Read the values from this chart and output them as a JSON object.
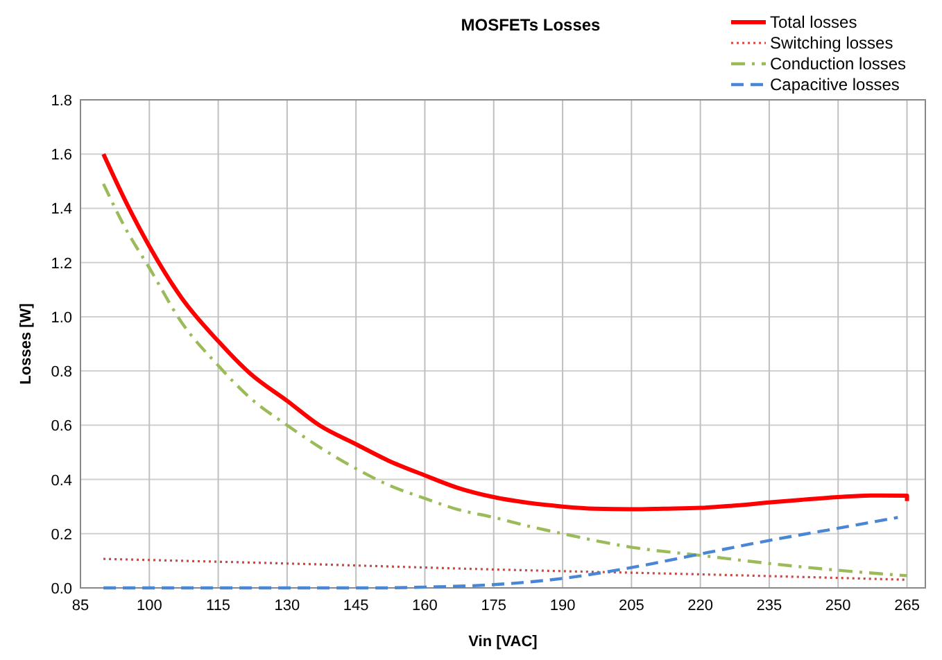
{
  "chart_data": {
    "type": "line",
    "title": "MOSFETs Losses",
    "xlabel": "Vin [VAC]",
    "ylabel": "Losses [W]",
    "xlim": [
      85,
      269
    ],
    "xticks": [
      85,
      100,
      115,
      130,
      145,
      160,
      175,
      190,
      205,
      220,
      235,
      250,
      265
    ],
    "ylim": [
      0,
      1.8
    ],
    "yticks": [
      {
        "value": 0,
        "label": "0.0"
      },
      {
        "value": 0.2,
        "label": "0.2"
      },
      {
        "value": 0.4,
        "label": "0.4"
      },
      {
        "value": 0.6,
        "label": "0.6"
      },
      {
        "value": 0.8,
        "label": "0.8"
      },
      {
        "value": 1,
        "label": "1.0"
      },
      {
        "value": 1.2,
        "label": "1.2"
      },
      {
        "value": 1.4,
        "label": "1.4"
      },
      {
        "value": 1.6,
        "label": "1.6"
      },
      {
        "value": 1.8,
        "label": "1.8"
      }
    ],
    "grid": true,
    "legend": "top right",
    "marker": "none",
    "series": [
      {
        "name": "Total losses",
        "color": "#ff0000",
        "line_style": "solid",
        "x": [
          90,
          95,
          100,
          107,
          115,
          122,
          130,
          137,
          145,
          152,
          160,
          167,
          175,
          182,
          190,
          197,
          205,
          212,
          220,
          227,
          235,
          242,
          250,
          257,
          265,
          265
        ],
        "values": [
          1.6,
          1.42,
          1.26,
          1.07,
          0.91,
          0.79,
          0.69,
          0.6,
          0.53,
          0.47,
          0.415,
          0.37,
          0.335,
          0.315,
          0.3,
          0.292,
          0.29,
          0.292,
          0.295,
          0.303,
          0.315,
          0.325,
          0.335,
          0.341,
          0.34,
          0.32
        ]
      },
      {
        "name": "Switching losses",
        "color": "#d9413a",
        "line_style": "dotted",
        "x": [
          90,
          130,
          175,
          220,
          265
        ],
        "values": [
          0.107,
          0.09,
          0.068,
          0.05,
          0.03
        ]
      },
      {
        "name": "Conduction losses",
        "color": "#9bbb59",
        "line_style": "dashdot",
        "x": [
          90,
          95,
          100,
          107,
          115,
          122,
          130,
          137,
          145,
          152,
          160,
          167,
          175,
          182,
          190,
          205,
          220,
          235,
          250,
          265
        ],
        "values": [
          1.49,
          1.32,
          1.18,
          0.98,
          0.82,
          0.7,
          0.6,
          0.52,
          0.44,
          0.38,
          0.33,
          0.29,
          0.26,
          0.23,
          0.2,
          0.15,
          0.12,
          0.09,
          0.065,
          0.045
        ]
      },
      {
        "name": "Capacitive losses",
        "color": "#4a86d6",
        "line_style": "dashed",
        "x": [
          90,
          150,
          160,
          175,
          190,
          205,
          220,
          235,
          250,
          263
        ],
        "values": [
          0,
          0,
          0.003,
          0.012,
          0.035,
          0.075,
          0.125,
          0.175,
          0.22,
          0.26
        ]
      }
    ]
  }
}
